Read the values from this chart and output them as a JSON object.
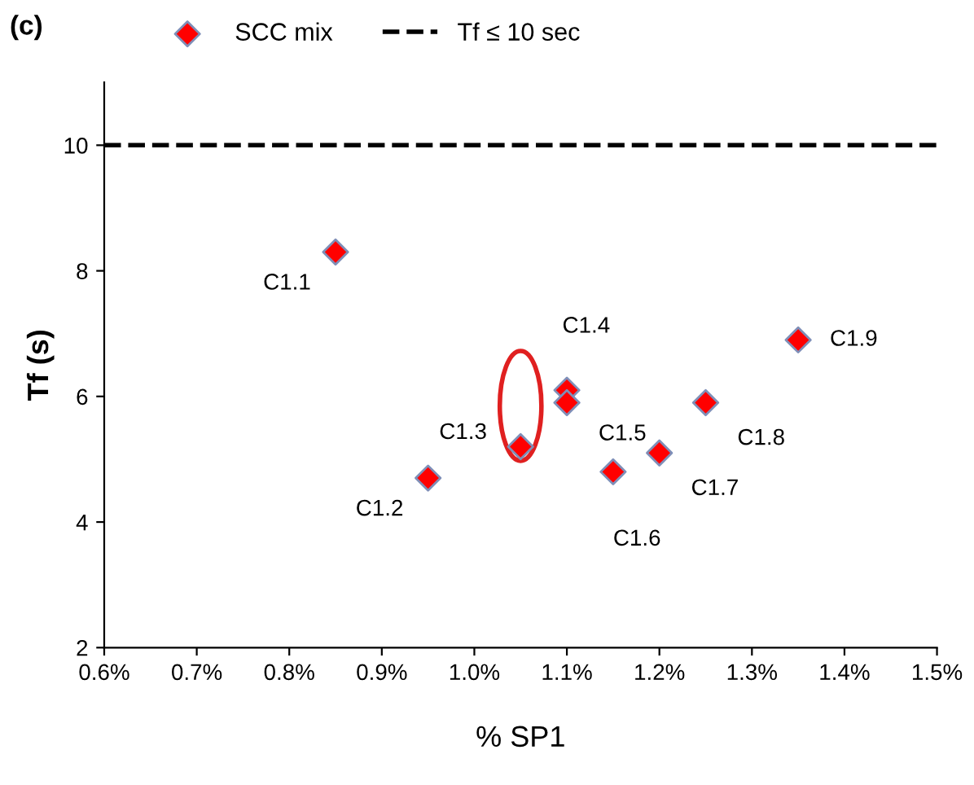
{
  "chart_data": {
    "type": "scatter",
    "title": "(c)",
    "xlabel": "% SP1",
    "ylabel": "Tf (s)",
    "x": [
      0.85,
      0.95,
      1.05,
      1.1,
      1.1,
      1.15,
      1.2,
      1.25,
      1.35
    ],
    "series": [
      {
        "name": "SCC mix",
        "color": "#ff0000",
        "values": [
          8.3,
          4.7,
          5.2,
          6.1,
          5.9,
          4.8,
          5.1,
          5.9,
          6.9
        ]
      }
    ],
    "marker": "diamond",
    "grid": false,
    "legend": "top",
    "xlim": [
      0.6,
      1.5
    ],
    "xticks": [
      {
        "value": 0.6,
        "label": "0.6%"
      },
      {
        "value": 0.7,
        "label": "0.7%"
      },
      {
        "value": 0.8,
        "label": "0.8%"
      },
      {
        "value": 0.9,
        "label": "0.9%"
      },
      {
        "value": 1.0,
        "label": "1.0%"
      },
      {
        "value": 1.1,
        "label": "1.1%"
      },
      {
        "value": 1.2,
        "label": "1.2%"
      },
      {
        "value": 1.3,
        "label": "1.3%"
      },
      {
        "value": 1.4,
        "label": "1.4%"
      },
      {
        "value": 1.5,
        "label": "1.5%"
      }
    ],
    "ylim": [
      2,
      11
    ],
    "yticks": [
      2,
      4,
      6,
      8,
      10
    ],
    "ref_lines": [
      {
        "axis": "y",
        "value": 10,
        "label": "Tf ≤ 10 sec",
        "color": "#000000",
        "line_style": "dashed"
      }
    ],
    "annotations": [
      {
        "text": "C1.1",
        "x": 0.85,
        "y": 8.3
      },
      {
        "text": "C1.2",
        "x": 0.95,
        "y": 4.7
      },
      {
        "text": "C1.3",
        "x": 1.05,
        "y": 5.2
      },
      {
        "text": "C1.4",
        "x": 1.1,
        "y": 6.1
      },
      {
        "text": "C1.5",
        "x": 1.1,
        "y": 5.9
      },
      {
        "text": "C1.6",
        "x": 1.15,
        "y": 4.8
      },
      {
        "text": "C1.7",
        "x": 1.2,
        "y": 5.1
      },
      {
        "text": "C1.8",
        "x": 1.25,
        "y": 5.9
      },
      {
        "text": "C1.9",
        "x": 1.35,
        "y": 6.9
      }
    ]
  }
}
